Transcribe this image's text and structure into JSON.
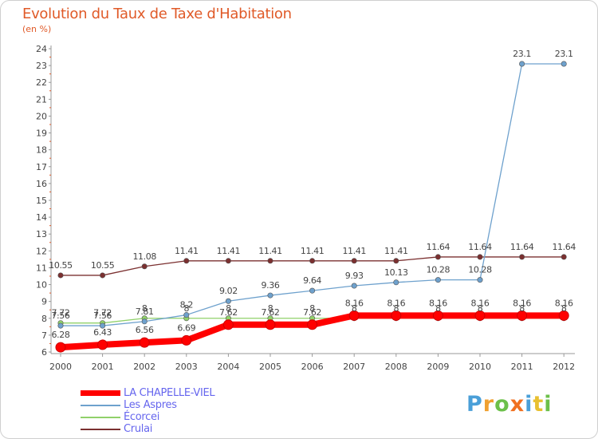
{
  "chart_data": {
    "type": "line",
    "title": "Evolution du Taux de Taxe d'Habitation",
    "subtitle": "(en %)",
    "x": [
      "2000",
      "2001",
      "2002",
      "2003",
      "2004",
      "2005",
      "2006",
      "2007",
      "2008",
      "2009",
      "2010",
      "2011",
      "2012"
    ],
    "ylim": [
      6,
      24
    ],
    "yticks": [
      "6",
      "7",
      "8",
      "9",
      "10",
      "11",
      "12",
      "13",
      "14",
      "15",
      "16",
      "17",
      "18",
      "19",
      "20",
      "21",
      "22",
      "23",
      "24"
    ],
    "grid": false,
    "legend_position": "bottom-left",
    "series": [
      {
        "name": "LA CHAPELLE-VIEL",
        "color": "#ff0000",
        "values": [
          6.28,
          6.43,
          6.56,
          6.69,
          7.62,
          7.62,
          7.62,
          8.16,
          8.16,
          8.16,
          8.16,
          8.16,
          8.16
        ],
        "labels": [
          "6.28",
          "6.43",
          "6.56",
          "6.69",
          "7.62",
          "7.62",
          "7.62",
          "8.16",
          "8.16",
          "8.16",
          "8.16",
          "8.16",
          "8.16"
        ]
      },
      {
        "name": "Les Aspres",
        "color": "#6ea1cd",
        "values": [
          7.56,
          7.56,
          7.81,
          8.2,
          9.02,
          9.36,
          9.64,
          9.93,
          10.13,
          10.28,
          10.28,
          23.1,
          23.1
        ],
        "labels": [
          "7.56",
          "7.56",
          "7.81",
          "8.2",
          "9.02",
          "9.36",
          "9.64",
          "9.93",
          "10.13",
          "10.28",
          "10.28",
          "23.1",
          "23.1"
        ]
      },
      {
        "name": "Écorcei",
        "color": "#90d16a",
        "values": [
          7.72,
          7.72,
          8,
          8,
          8,
          8,
          8,
          8,
          8,
          8,
          8,
          8,
          8
        ],
        "labels": [
          "7.72",
          "7.72",
          "8",
          "8",
          "8",
          "8",
          "8",
          "8",
          "8",
          "8",
          "8",
          "8",
          "8"
        ]
      },
      {
        "name": "Crulai",
        "color": "#7b3030",
        "values": [
          10.55,
          10.55,
          11.08,
          11.41,
          11.41,
          11.41,
          11.41,
          11.41,
          11.41,
          11.64,
          11.64,
          11.64,
          11.64
        ],
        "labels": [
          "10.55",
          "10.55",
          "11.08",
          "11.41",
          "11.41",
          "11.41",
          "11.41",
          "11.41",
          "11.41",
          "11.64",
          "11.64",
          "11.64",
          "11.64"
        ]
      }
    ]
  },
  "brand": {
    "letters": [
      "P",
      "r",
      "o",
      "x",
      "i",
      "t",
      "i"
    ],
    "colors": [
      "#4a9fd8",
      "#f0a030",
      "#6cc04a",
      "#f07020",
      "#4a9fd8",
      "#e8c030",
      "#6cc04a"
    ]
  }
}
